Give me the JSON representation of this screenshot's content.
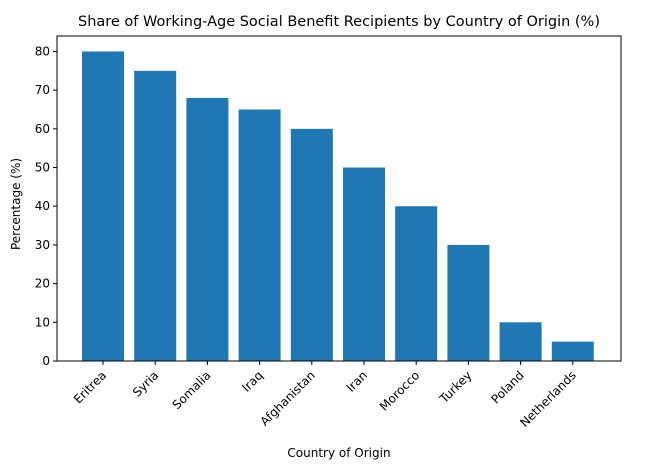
{
  "chart_data": {
    "type": "bar",
    "title": "Share of Working-Age Social Benefit Recipients by Country of Origin (%)",
    "xlabel": "Country of Origin",
    "ylabel": "Percentage (%)",
    "categories": [
      "Eritrea",
      "Syria",
      "Somalia",
      "Iraq",
      "Afghanistan",
      "Iran",
      "Morocco",
      "Turkey",
      "Poland",
      "Netherlands"
    ],
    "values": [
      80,
      75,
      68,
      65,
      60,
      50,
      40,
      30,
      10,
      5
    ],
    "ylim": [
      0,
      84
    ],
    "yticks": [
      0,
      10,
      20,
      30,
      40,
      50,
      60,
      70,
      80
    ],
    "bar_color": "#1f77b4",
    "grid": false,
    "legend": "none"
  }
}
